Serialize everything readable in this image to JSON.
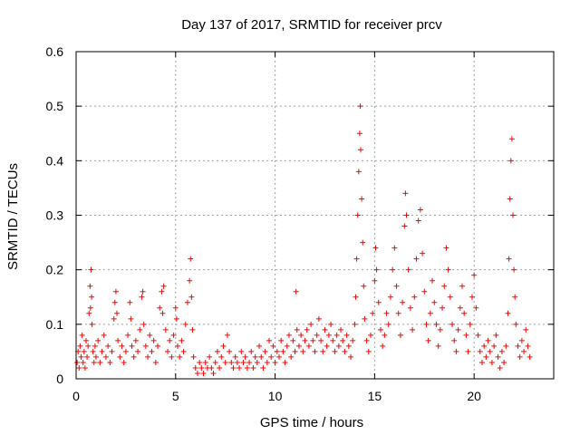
{
  "chart_data": {
    "type": "scatter",
    "title": "Day 137 of 2017, SRMTID for receiver prcv",
    "xlabel": "GPS time / hours",
    "ylabel": "SRMTID / TECUs",
    "xlim": [
      0,
      24
    ],
    "ylim": [
      0,
      0.6
    ],
    "xticks": [
      0,
      5,
      10,
      15,
      20
    ],
    "xtick_labels": [
      "0",
      "5",
      "10",
      "15",
      "20"
    ],
    "yticks": [
      0,
      0.1,
      0.2,
      0.3,
      0.4,
      0.5,
      0.6
    ],
    "ytick_labels": [
      "0",
      "0.1",
      "0.2",
      "0.3",
      "0.4",
      "0.5",
      "0.6"
    ],
    "grid": true,
    "marker": "plus",
    "color": "#ff0000",
    "series": [
      {
        "name": "SRMTID",
        "points": [
          [
            0.05,
            0.03
          ],
          [
            0.1,
            0.05
          ],
          [
            0.15,
            0.02
          ],
          [
            0.2,
            0.06
          ],
          [
            0.25,
            0.04
          ],
          [
            0.3,
            0.08
          ],
          [
            0.35,
            0.03
          ],
          [
            0.4,
            0.05
          ],
          [
            0.45,
            0.02
          ],
          [
            0.5,
            0.07
          ],
          [
            0.55,
            0.04
          ],
          [
            0.6,
            0.06
          ],
          [
            0.65,
            0.12
          ],
          [
            0.7,
            0.17
          ],
          [
            0.72,
            0.13
          ],
          [
            0.75,
            0.2
          ],
          [
            0.78,
            0.15
          ],
          [
            0.8,
            0.1
          ],
          [
            0.85,
            0.05
          ],
          [
            0.9,
            0.03
          ],
          [
            0.95,
            0.06
          ],
          [
            1.0,
            0.04
          ],
          [
            1.1,
            0.07
          ],
          [
            1.2,
            0.03
          ],
          [
            1.3,
            0.05
          ],
          [
            1.4,
            0.08
          ],
          [
            1.5,
            0.04
          ],
          [
            1.6,
            0.06
          ],
          [
            1.7,
            0.03
          ],
          [
            1.8,
            0.05
          ],
          [
            1.9,
            0.11
          ],
          [
            1.95,
            0.14
          ],
          [
            2.0,
            0.16
          ],
          [
            2.05,
            0.12
          ],
          [
            2.1,
            0.07
          ],
          [
            2.2,
            0.04
          ],
          [
            2.3,
            0.06
          ],
          [
            2.4,
            0.03
          ],
          [
            2.5,
            0.05
          ],
          [
            2.6,
            0.08
          ],
          [
            2.7,
            0.14
          ],
          [
            2.75,
            0.11
          ],
          [
            2.8,
            0.06
          ],
          [
            2.9,
            0.04
          ],
          [
            3.0,
            0.07
          ],
          [
            3.1,
            0.05
          ],
          [
            3.2,
            0.09
          ],
          [
            3.3,
            0.15
          ],
          [
            3.35,
            0.16
          ],
          [
            3.4,
            0.1
          ],
          [
            3.5,
            0.06
          ],
          [
            3.6,
            0.04
          ],
          [
            3.7,
            0.08
          ],
          [
            3.8,
            0.05
          ],
          [
            3.9,
            0.07
          ],
          [
            4.0,
            0.03
          ],
          [
            4.1,
            0.06
          ],
          [
            4.2,
            0.13
          ],
          [
            4.3,
            0.16
          ],
          [
            4.35,
            0.12
          ],
          [
            4.4,
            0.17
          ],
          [
            4.5,
            0.09
          ],
          [
            4.6,
            0.05
          ],
          [
            4.7,
            0.07
          ],
          [
            4.8,
            0.04
          ],
          [
            4.9,
            0.08
          ],
          [
            5.0,
            0.13
          ],
          [
            5.05,
            0.11
          ],
          [
            5.1,
            0.06
          ],
          [
            5.2,
            0.04
          ],
          [
            5.3,
            0.07
          ],
          [
            5.4,
            0.05
          ],
          [
            5.5,
            0.1
          ],
          [
            5.6,
            0.14
          ],
          [
            5.7,
            0.18
          ],
          [
            5.75,
            0.22
          ],
          [
            5.8,
            0.15
          ],
          [
            5.85,
            0.09
          ],
          [
            5.9,
            0.04
          ],
          [
            6.0,
            0.02
          ],
          [
            6.1,
            0.01
          ],
          [
            6.2,
            0.03
          ],
          [
            6.3,
            0.02
          ],
          [
            6.4,
            0.01
          ],
          [
            6.5,
            0.03
          ],
          [
            6.6,
            0.02
          ],
          [
            6.7,
            0.04
          ],
          [
            6.8,
            0.02
          ],
          [
            6.9,
            0.01
          ],
          [
            7.0,
            0.03
          ],
          [
            7.1,
            0.05
          ],
          [
            7.2,
            0.02
          ],
          [
            7.3,
            0.04
          ],
          [
            7.4,
            0.06
          ],
          [
            7.5,
            0.03
          ],
          [
            7.6,
            0.08
          ],
          [
            7.7,
            0.05
          ],
          [
            7.8,
            0.03
          ],
          [
            7.9,
            0.02
          ],
          [
            8.0,
            0.04
          ],
          [
            8.1,
            0.03
          ],
          [
            8.2,
            0.02
          ],
          [
            8.3,
            0.05
          ],
          [
            8.4,
            0.03
          ],
          [
            8.5,
            0.04
          ],
          [
            8.6,
            0.02
          ],
          [
            8.7,
            0.03
          ],
          [
            8.8,
            0.05
          ],
          [
            8.9,
            0.02
          ],
          [
            9.0,
            0.04
          ],
          [
            9.1,
            0.03
          ],
          [
            9.2,
            0.06
          ],
          [
            9.3,
            0.04
          ],
          [
            9.4,
            0.02
          ],
          [
            9.5,
            0.05
          ],
          [
            9.6,
            0.03
          ],
          [
            9.7,
            0.07
          ],
          [
            9.8,
            0.04
          ],
          [
            9.9,
            0.06
          ],
          [
            10.0,
            0.03
          ],
          [
            10.1,
            0.05
          ],
          [
            10.2,
            0.04
          ],
          [
            10.3,
            0.07
          ],
          [
            10.4,
            0.05
          ],
          [
            10.5,
            0.03
          ],
          [
            10.6,
            0.06
          ],
          [
            10.7,
            0.08
          ],
          [
            10.8,
            0.04
          ],
          [
            10.9,
            0.07
          ],
          [
            11.0,
            0.05
          ],
          [
            11.05,
            0.16
          ],
          [
            11.1,
            0.09
          ],
          [
            11.2,
            0.06
          ],
          [
            11.3,
            0.08
          ],
          [
            11.4,
            0.05
          ],
          [
            11.5,
            0.07
          ],
          [
            11.6,
            0.09
          ],
          [
            11.7,
            0.06
          ],
          [
            11.8,
            0.1
          ],
          [
            11.9,
            0.07
          ],
          [
            12.0,
            0.05
          ],
          [
            12.1,
            0.08
          ],
          [
            12.2,
            0.11
          ],
          [
            12.3,
            0.07
          ],
          [
            12.4,
            0.05
          ],
          [
            12.5,
            0.09
          ],
          [
            12.6,
            0.06
          ],
          [
            12.7,
            0.08
          ],
          [
            12.8,
            0.1
          ],
          [
            12.9,
            0.07
          ],
          [
            13.0,
            0.05
          ],
          [
            13.1,
            0.08
          ],
          [
            13.2,
            0.06
          ],
          [
            13.3,
            0.09
          ],
          [
            13.4,
            0.07
          ],
          [
            13.5,
            0.05
          ],
          [
            13.6,
            0.08
          ],
          [
            13.7,
            0.06
          ],
          [
            13.8,
            0.04
          ],
          [
            13.9,
            0.07
          ],
          [
            14.0,
            0.1
          ],
          [
            14.05,
            0.15
          ],
          [
            14.1,
            0.22
          ],
          [
            14.15,
            0.3
          ],
          [
            14.2,
            0.38
          ],
          [
            14.25,
            0.45
          ],
          [
            14.28,
            0.5
          ],
          [
            14.3,
            0.42
          ],
          [
            14.35,
            0.33
          ],
          [
            14.4,
            0.25
          ],
          [
            14.45,
            0.17
          ],
          [
            14.5,
            0.11
          ],
          [
            14.6,
            0.07
          ],
          [
            14.7,
            0.05
          ],
          [
            14.8,
            0.08
          ],
          [
            14.9,
            0.12
          ],
          [
            15.0,
            0.18
          ],
          [
            15.05,
            0.24
          ],
          [
            15.1,
            0.2
          ],
          [
            15.2,
            0.14
          ],
          [
            15.3,
            0.09
          ],
          [
            15.4,
            0.06
          ],
          [
            15.5,
            0.08
          ],
          [
            15.6,
            0.12
          ],
          [
            15.7,
            0.1
          ],
          [
            15.8,
            0.15
          ],
          [
            15.9,
            0.2
          ],
          [
            16.0,
            0.24
          ],
          [
            16.1,
            0.17
          ],
          [
            16.2,
            0.12
          ],
          [
            16.3,
            0.08
          ],
          [
            16.4,
            0.14
          ],
          [
            16.5,
            0.28
          ],
          [
            16.55,
            0.34
          ],
          [
            16.6,
            0.3
          ],
          [
            16.7,
            0.2
          ],
          [
            16.8,
            0.13
          ],
          [
            16.9,
            0.09
          ],
          [
            17.0,
            0.15
          ],
          [
            17.1,
            0.22
          ],
          [
            17.2,
            0.29
          ],
          [
            17.3,
            0.31
          ],
          [
            17.4,
            0.23
          ],
          [
            17.5,
            0.16
          ],
          [
            17.6,
            0.1
          ],
          [
            17.7,
            0.07
          ],
          [
            17.8,
            0.12
          ],
          [
            17.9,
            0.18
          ],
          [
            18.0,
            0.14
          ],
          [
            18.1,
            0.1
          ],
          [
            18.2,
            0.06
          ],
          [
            18.3,
            0.09
          ],
          [
            18.4,
            0.13
          ],
          [
            18.5,
            0.17
          ],
          [
            18.6,
            0.24
          ],
          [
            18.7,
            0.2
          ],
          [
            18.8,
            0.15
          ],
          [
            18.9,
            0.1
          ],
          [
            19.0,
            0.07
          ],
          [
            19.1,
            0.05
          ],
          [
            19.2,
            0.09
          ],
          [
            19.3,
            0.13
          ],
          [
            19.4,
            0.17
          ],
          [
            19.5,
            0.12
          ],
          [
            19.6,
            0.08
          ],
          [
            19.7,
            0.05
          ],
          [
            19.8,
            0.1
          ],
          [
            19.9,
            0.15
          ],
          [
            20.0,
            0.19
          ],
          [
            20.1,
            0.13
          ],
          [
            20.2,
            0.08
          ],
          [
            20.3,
            0.05
          ],
          [
            20.4,
            0.03
          ],
          [
            20.5,
            0.06
          ],
          [
            20.6,
            0.04
          ],
          [
            20.7,
            0.07
          ],
          [
            20.8,
            0.05
          ],
          [
            20.9,
            0.03
          ],
          [
            21.0,
            0.06
          ],
          [
            21.1,
            0.08
          ],
          [
            21.2,
            0.04
          ],
          [
            21.3,
            0.02
          ],
          [
            21.4,
            0.05
          ],
          [
            21.5,
            0.03
          ],
          [
            21.6,
            0.06
          ],
          [
            21.7,
            0.12
          ],
          [
            21.75,
            0.22
          ],
          [
            21.8,
            0.33
          ],
          [
            21.85,
            0.4
          ],
          [
            21.9,
            0.44
          ],
          [
            21.95,
            0.3
          ],
          [
            22.0,
            0.2
          ],
          [
            22.05,
            0.15
          ],
          [
            22.1,
            0.1
          ],
          [
            22.2,
            0.06
          ],
          [
            22.3,
            0.04
          ],
          [
            22.4,
            0.07
          ],
          [
            22.5,
            0.05
          ],
          [
            22.6,
            0.09
          ],
          [
            22.7,
            0.06
          ],
          [
            22.8,
            0.04
          ]
        ]
      }
    ]
  }
}
